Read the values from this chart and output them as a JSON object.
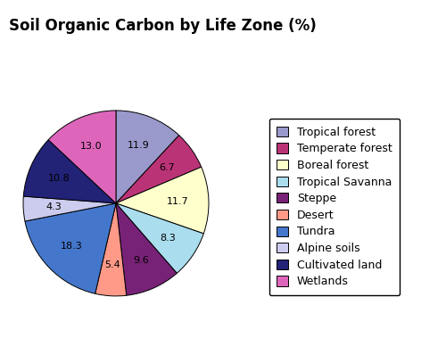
{
  "title": "Soil Organic Carbon by Life Zone (%)",
  "labels": [
    "Tropical forest",
    "Temperate forest",
    "Boreal forest",
    "Tropical Savanna",
    "Steppe",
    "Desert",
    "Tundra",
    "Alpine soils",
    "Cultivated land",
    "Wetlands"
  ],
  "values": [
    11.9,
    6.7,
    11.7,
    8.3,
    9.6,
    5.4,
    18.3,
    4.3,
    10.8,
    13.0
  ],
  "colors": [
    "#9999cc",
    "#bb3377",
    "#ffffcc",
    "#aaddee",
    "#772277",
    "#ff9988",
    "#4477cc",
    "#ccccee",
    "#222277",
    "#dd66bb"
  ],
  "start_angle": 90,
  "title_fontsize": 12,
  "label_fontsize": 8,
  "legend_fontsize": 9
}
